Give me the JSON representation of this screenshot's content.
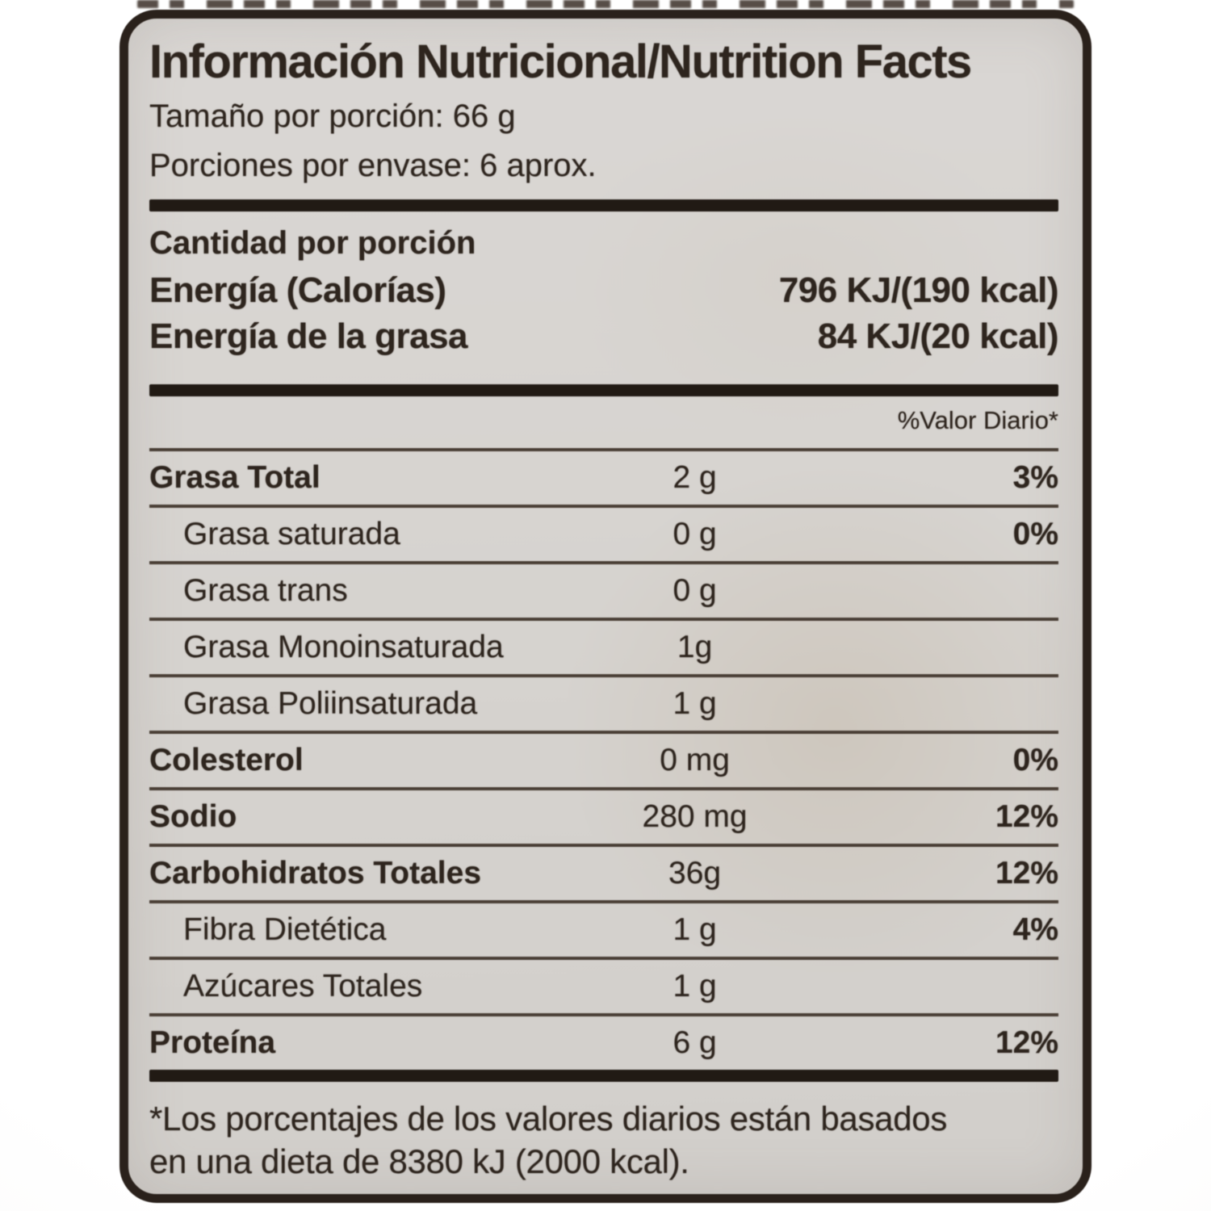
{
  "label": {
    "title": "Información Nutricional/Nutrition Facts",
    "serving_size": "Tamaño por porción: 66 g",
    "servings_per_container": "Porciones por envase: 6 aprox.",
    "amount_per_serving_heading": "Cantidad por porción",
    "energy_rows": [
      {
        "name": "Energía (Calorías)",
        "value": "796 KJ/(190 kcal)"
      },
      {
        "name": "Energía de la grasa",
        "value": "84 KJ/(20 kcal)"
      }
    ],
    "daily_value_header": "%Valor Diario*",
    "nutrients": [
      {
        "name": "Grasa Total",
        "amount": "2 g",
        "dv": "3%",
        "emphasis": true,
        "indent": false
      },
      {
        "name": "Grasa saturada",
        "amount": "0 g",
        "dv": "0%",
        "emphasis": false,
        "indent": true
      },
      {
        "name": "Grasa trans",
        "amount": "0 g",
        "dv": "",
        "emphasis": false,
        "indent": true
      },
      {
        "name": "Grasa Monoinsaturada",
        "amount": "1g",
        "dv": "",
        "emphasis": false,
        "indent": true
      },
      {
        "name": "Grasa Poliinsaturada",
        "amount": "1 g",
        "dv": "",
        "emphasis": false,
        "indent": true
      },
      {
        "name": "Colesterol",
        "amount": "0 mg",
        "dv": "0%",
        "emphasis": true,
        "indent": false
      },
      {
        "name": "Sodio",
        "amount": "280 mg",
        "dv": "12%",
        "emphasis": true,
        "indent": false
      },
      {
        "name": "Carbohidratos Totales",
        "amount": "36g",
        "dv": "12%",
        "emphasis": true,
        "indent": false
      },
      {
        "name": "Fibra Dietética",
        "amount": "1 g",
        "dv": "4%",
        "emphasis": false,
        "indent": true
      },
      {
        "name": "Azúcares Totales",
        "amount": "1 g",
        "dv": "",
        "emphasis": false,
        "indent": true
      },
      {
        "name": "Proteína",
        "amount": "6 g",
        "dv": "12%",
        "emphasis": true,
        "indent": false
      }
    ],
    "footnote": [
      "*Los porcentajes de los valores diarios están basados",
      "en una dieta de 8380 kJ (2000 kcal)."
    ],
    "colors": {
      "ink": "#2e251e",
      "paper": "#d7d4d0",
      "bar": "#211a14",
      "line": "#4a3f36"
    }
  }
}
